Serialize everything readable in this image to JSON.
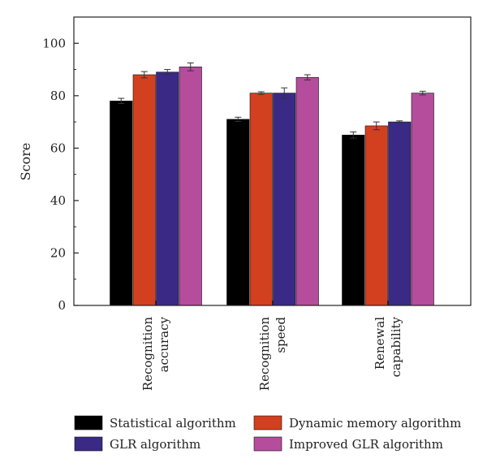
{
  "chart_data": {
    "type": "bar",
    "title": "",
    "xlabel": "",
    "ylabel": "Score",
    "ylim": [
      0,
      110
    ],
    "yticks": [
      0,
      20,
      40,
      60,
      80,
      100
    ],
    "grid": false,
    "legend_position": "bottom",
    "categories": [
      [
        "Recognition",
        "accuracy"
      ],
      [
        "Recognition",
        "speed"
      ],
      [
        "Renewal",
        "capability"
      ]
    ],
    "series": [
      {
        "name": "Statistical algorithm",
        "color": "#000000",
        "values": [
          78,
          71,
          65
        ],
        "errors": [
          1,
          0.8,
          1.2
        ]
      },
      {
        "name": "Dynamic memory algorithm",
        "color": "#d2401f",
        "values": [
          88,
          81,
          68.5
        ],
        "errors": [
          1.2,
          0.5,
          1.5
        ]
      },
      {
        "name": "GLR algorithm",
        "color": "#3a2a86",
        "values": [
          89,
          81,
          70
        ],
        "errors": [
          1,
          2,
          0.4
        ]
      },
      {
        "name": "Improved GLR algorithm",
        "color": "#b54d9c",
        "values": [
          91,
          87,
          81
        ],
        "errors": [
          1.5,
          1,
          0.7
        ]
      }
    ]
  }
}
